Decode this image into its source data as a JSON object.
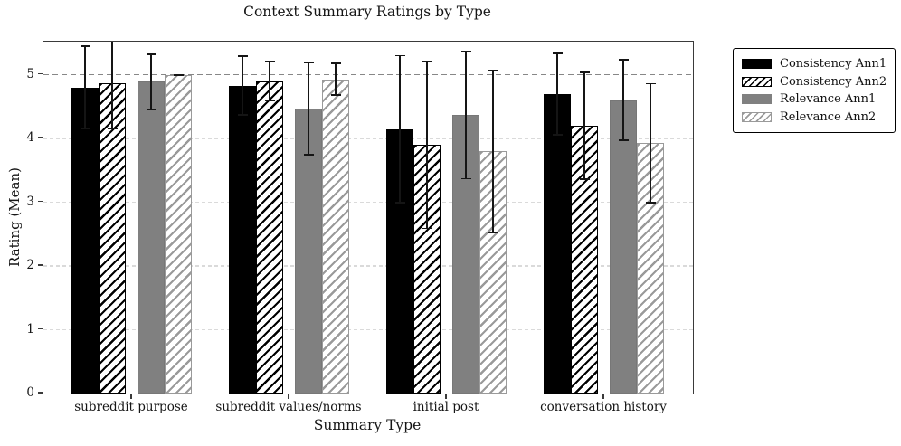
{
  "figure": {
    "background": "#ffffff"
  },
  "chart_data": {
    "type": "bar",
    "title": "Context Summary Ratings by Type",
    "xlabel": "Summary Type",
    "ylabel": "Rating (Mean)",
    "categories": [
      "subreddit purpose",
      "subreddit values/norms",
      "initial post",
      "conversation history"
    ],
    "series": [
      {
        "name": "Consistency Ann1",
        "fill": "#000000",
        "edge": "#000000",
        "hatch": null,
        "values": [
          4.8,
          4.83,
          4.15,
          4.7
        ],
        "errors": [
          0.65,
          0.46,
          1.15,
          0.64
        ]
      },
      {
        "name": "Consistency Ann2",
        "fill": "#ffffff",
        "edge": "#000000",
        "hatch": "#000000",
        "values": [
          4.87,
          4.9,
          3.9,
          4.2
        ],
        "errors": [
          0.72,
          0.31,
          1.31,
          0.84
        ]
      },
      {
        "name": "Relevance Ann1",
        "fill": "#808080",
        "edge": "#777777",
        "hatch": null,
        "values": [
          4.89,
          4.47,
          4.37,
          4.6
        ],
        "errors": [
          0.43,
          0.72,
          1.0,
          0.63
        ]
      },
      {
        "name": "Relevance Ann2",
        "fill": "#ffffff",
        "edge": "#9a9a9a",
        "hatch": "#9a9a9a",
        "values": [
          5.0,
          4.93,
          3.8,
          3.93
        ],
        "errors": [
          0.0,
          0.25,
          1.27,
          0.93
        ]
      }
    ],
    "yticks": [
      0,
      1,
      2,
      3,
      4,
      5
    ],
    "ylim": [
      0,
      5.52
    ],
    "grid": {
      "show": true,
      "color": "#dadada",
      "style": "dashed"
    },
    "refline": {
      "y": 5,
      "color": "#878787",
      "style": "dashed"
    },
    "error_color": "#151515",
    "legend": {
      "position": "outside-upper-right",
      "border_color": "#000000"
    }
  }
}
